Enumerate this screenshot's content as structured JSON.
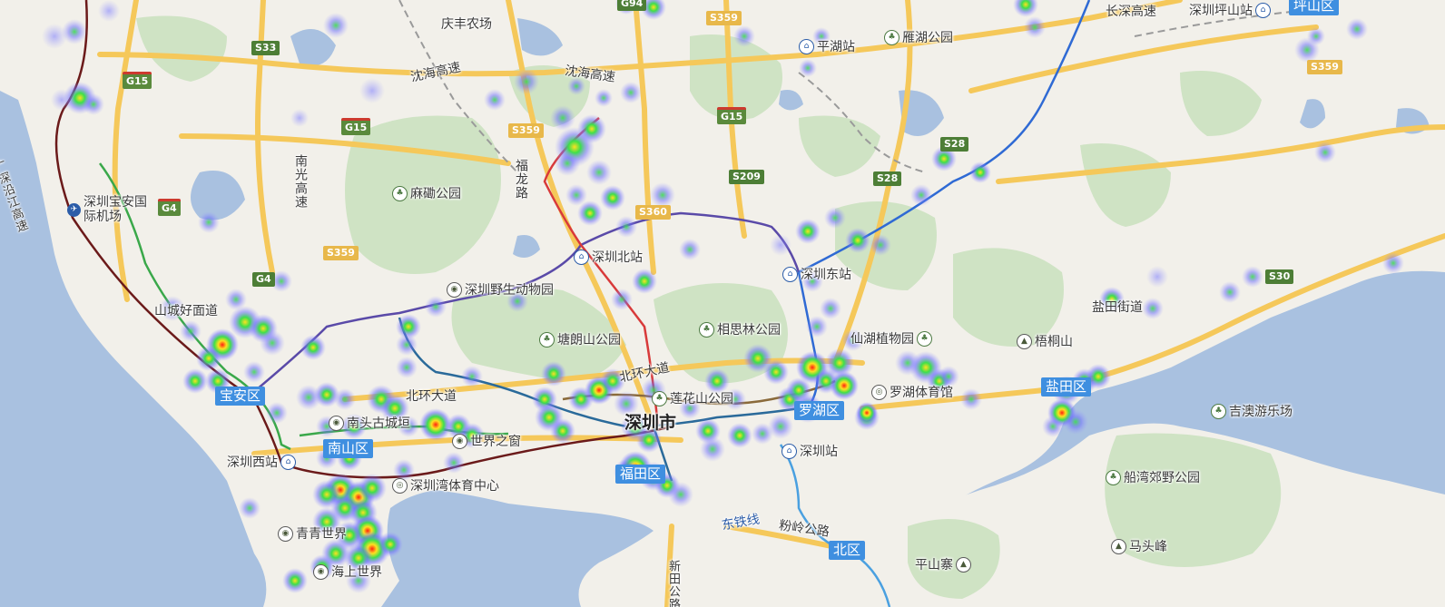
{
  "map": {
    "districts": [
      "坪山区",
      "宝安区",
      "南山区",
      "福田区",
      "罗湖区",
      "盐田区",
      "北区"
    ],
    "places": [
      "庆丰农场",
      "深圳坪山站",
      "长深高速",
      "雁湖公园",
      "平湖站",
      "沈海高速",
      "沈海高速",
      "南光高速",
      "麻磡公园",
      "福龙路",
      "深圳宝安国际机场",
      "广深沿江高速",
      "深圳北站",
      "深圳东站",
      "盐田街道",
      "梧桐山",
      "深圳野生动物园",
      "塘朗山公园",
      "相思林公园",
      "仙湖植物园",
      "山城好面道",
      "北环大道",
      "北环大道",
      "莲花山公园",
      "罗湖体育馆",
      "吉澳游乐场",
      "南头古城垣",
      "世界之窗",
      "深圳市",
      "深圳站",
      "深圳西站",
      "深圳湾体育中心",
      "船湾郊野公园",
      "东铁线",
      "粉岭公路",
      "新田公路",
      "马头峰",
      "平山寨",
      "青青世界",
      "海上世界"
    ],
    "road_shields": [
      "S33",
      "G15",
      "G15",
      "G4",
      "G4",
      "S359",
      "S359",
      "S359",
      "G15",
      "S209",
      "S28",
      "S28",
      "S30",
      "S360",
      "S359",
      "G94"
    ],
    "heat_colors": {
      "low": "#7a7aff",
      "mid": "#3de04a",
      "high": "#ffe020",
      "peak": "#ff2010"
    }
  }
}
